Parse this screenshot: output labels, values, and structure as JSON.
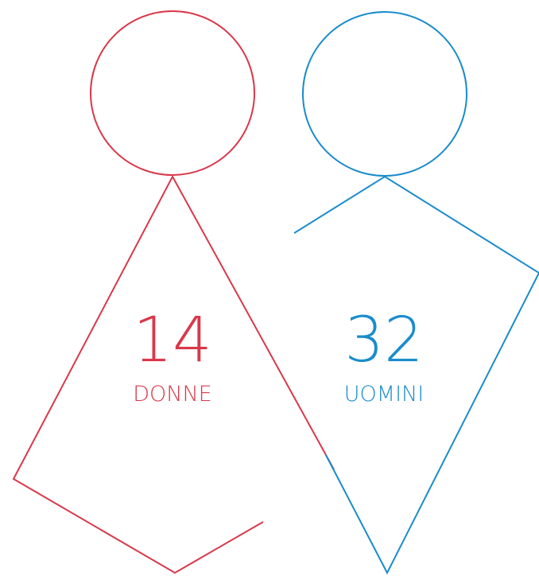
{
  "figures": [
    {
      "value": 14,
      "label": "DONNE"
    },
    {
      "value": 32,
      "label": "UOMINI"
    }
  ]
}
